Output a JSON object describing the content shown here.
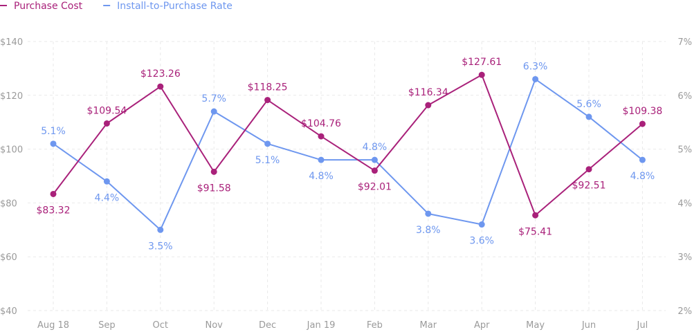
{
  "chart_data": {
    "type": "line",
    "categories": [
      "Aug 18",
      "Sep",
      "Oct",
      "Nov",
      "Dec",
      "Jan 19",
      "Feb",
      "Mar",
      "Apr",
      "May",
      "Jun",
      "Jul"
    ],
    "series": [
      {
        "name": "Purchase Cost",
        "axis": "left",
        "color": "#a9217a",
        "values": [
          83.32,
          109.54,
          123.26,
          91.58,
          118.25,
          104.76,
          92.01,
          116.34,
          127.61,
          75.41,
          92.51,
          109.38
        ],
        "labels": [
          "$83.32",
          "$109.54",
          "$123.26",
          "$91.58",
          "$118.25",
          "$104.76",
          "$92.01",
          "$116.34",
          "$127.61",
          "$75.41",
          "$92.51",
          "$109.38"
        ],
        "label_pos": [
          "below",
          "above",
          "above",
          "below",
          "above",
          "above",
          "below",
          "above",
          "above",
          "below",
          "below",
          "above"
        ]
      },
      {
        "name": "Install-to-Purchase Rate",
        "axis": "right",
        "color": "#6e97ef",
        "values": [
          5.1,
          4.4,
          3.5,
          5.7,
          5.1,
          4.8,
          4.8,
          3.8,
          3.6,
          6.3,
          5.6,
          4.8
        ],
        "labels": [
          "5.1%",
          "4.4%",
          "3.5%",
          "5.7%",
          "5.1%",
          "4.8%",
          "4.8%",
          "3.8%",
          "3.6%",
          "6.3%",
          "5.6%",
          "4.8%"
        ],
        "label_pos": [
          "above",
          "below",
          "below",
          "above",
          "below",
          "below",
          "above",
          "below",
          "below",
          "above",
          "above",
          "below"
        ]
      }
    ],
    "y_left": {
      "min": 40,
      "max": 140,
      "ticks": [
        40,
        60,
        80,
        100,
        120,
        140
      ],
      "tick_labels": [
        "$40",
        "$60",
        "$80",
        "$100",
        "$120",
        "$140"
      ]
    },
    "y_right": {
      "min": 2,
      "max": 7,
      "ticks": [
        2,
        3,
        4,
        5,
        6,
        7
      ],
      "tick_labels": [
        "2%",
        "3%",
        "4%",
        "5%",
        "6%",
        "7%"
      ]
    },
    "grid": true,
    "legend": "top-left"
  }
}
